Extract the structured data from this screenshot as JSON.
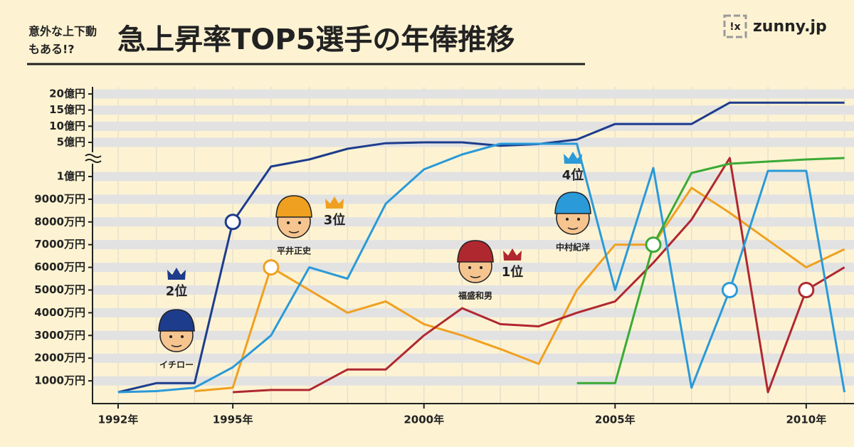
{
  "chart_data": {
    "type": "line",
    "title": "急上昇率TOP5選手の年俸推移",
    "subtitle": [
      "意外な上下動",
      "もある!?"
    ],
    "logo": "zunny.jp",
    "x": [
      1992,
      1993,
      1994,
      1995,
      1996,
      1997,
      1998,
      1999,
      2000,
      2001,
      2002,
      2003,
      2004,
      2005,
      2006,
      2007,
      2008,
      2009,
      2010,
      2011
    ],
    "xlim": [
      1991.33,
      2011.25
    ],
    "xticks": [
      {
        "value": 1992,
        "label": "1992年"
      },
      {
        "value": 1995,
        "label": "1995年"
      },
      {
        "value": 2000,
        "label": "2000年"
      },
      {
        "value": 2005,
        "label": "2005年"
      },
      {
        "value": 2010,
        "label": "2010年"
      }
    ],
    "ylim": [
      0,
      200000
    ],
    "ybreak": [
      10000,
      50000
    ],
    "yticks": [
      {
        "value": 1000,
        "label": "1000万円"
      },
      {
        "value": 2000,
        "label": "2000万円"
      },
      {
        "value": 3000,
        "label": "3000万円"
      },
      {
        "value": 4000,
        "label": "4000万円"
      },
      {
        "value": 5000,
        "label": "5000万円"
      },
      {
        "value": 6000,
        "label": "6000万円"
      },
      {
        "value": 7000,
        "label": "7000万円"
      },
      {
        "value": 8000,
        "label": "8000万円"
      },
      {
        "value": 9000,
        "label": "9000万円"
      },
      {
        "value": 10000,
        "label": "1億円"
      },
      {
        "value": 50000,
        "label": "5億円"
      },
      {
        "value": 100000,
        "label": "10億円"
      },
      {
        "value": 150000,
        "label": "15億円"
      },
      {
        "value": 200000,
        "label": "20億円"
      }
    ],
    "grid": true,
    "series": [
      {
        "name": "イチロー",
        "rank": "2位",
        "color": "#1d3c8c",
        "highlight": 1995,
        "values": [
          500,
          900,
          900,
          8000,
          21700,
          30000,
          42500,
          49000,
          50000,
          50000,
          46000,
          48000,
          58800,
          107000,
          107000,
          107000,
          173000,
          173000,
          173000,
          173000
        ]
      },
      {
        "name": "平井正史",
        "rank": "3位",
        "color": "#f0a020",
        "highlight": 1996,
        "values": [
          null,
          null,
          550,
          700,
          6000,
          5000,
          4000,
          4500,
          3500,
          3000,
          2400,
          1750,
          5000,
          7000,
          7000,
          9500,
          8400,
          7200,
          6000,
          6800
        ]
      },
      {
        "name": "福盛和男",
        "rank": "1位",
        "color": "#b0282f",
        "highlight": 2010,
        "values": [
          null,
          null,
          null,
          500,
          600,
          600,
          1500,
          1500,
          3000,
          4200,
          3500,
          3400,
          4000,
          4500,
          6200,
          8100,
          31700,
          500,
          5000,
          6000
        ]
      },
      {
        "name": "中村紀洋",
        "rank": "4位",
        "color": "#2a9ad8",
        "highlight": 2008,
        "values": [
          500,
          550,
          700,
          1600,
          3000,
          6000,
          5500,
          8800,
          18300,
          35800,
          48300,
          48300,
          48300,
          5000,
          20000,
          700,
          5000,
          16700,
          16700,
          500
        ]
      },
      {
        "color": "#3aaa35",
        "highlight": 2006,
        "values": [
          null,
          null,
          null,
          null,
          null,
          null,
          null,
          null,
          null,
          null,
          null,
          null,
          900,
          900,
          7000,
          14200,
          25000,
          27500,
          30000,
          31700
        ]
      }
    ]
  }
}
